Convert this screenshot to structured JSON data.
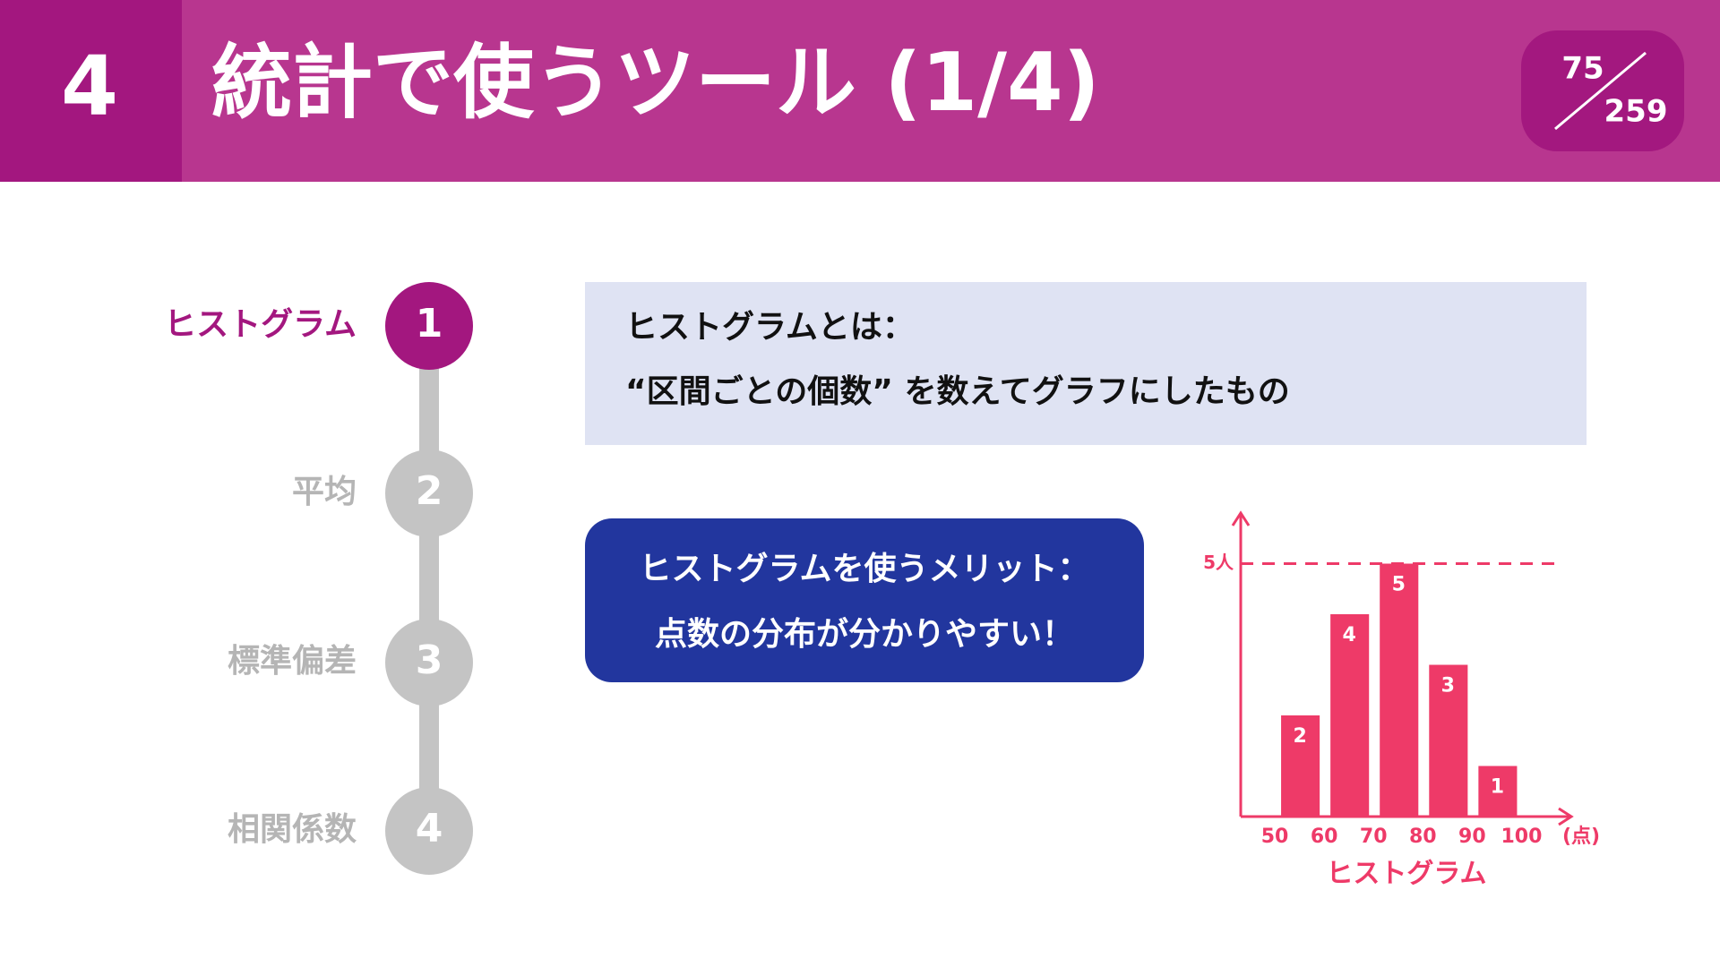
{
  "header": {
    "section": "4",
    "title": "統計で使うツール (1/4)",
    "page": "75",
    "total": "259"
  },
  "steps": [
    {
      "number": "1",
      "label": "ヒストグラム",
      "active": true
    },
    {
      "number": "2",
      "label": "平均",
      "active": false
    },
    {
      "number": "3",
      "label": "標準偏差",
      "active": false
    },
    {
      "number": "4",
      "label": "相関係数",
      "active": false
    }
  ],
  "definition": {
    "lines": [
      "ヒストグラムとは：",
      "“区間ごとの個数” を数えてグラフにしたもの"
    ]
  },
  "merit": {
    "lines": [
      "ヒストグラムを使うメリット：",
      "点数の分布が分かりやすい！"
    ]
  },
  "chart_data": {
    "type": "histogram",
    "title": "ヒストグラム",
    "color": "#ee3a68",
    "bins": [
      50,
      60,
      70,
      80,
      90,
      100
    ],
    "values": [
      2,
      4,
      5,
      3,
      1
    ],
    "xticks": [
      50,
      60,
      70,
      80,
      90,
      100
    ],
    "x_unit": "(点)",
    "xlim": [
      42,
      109
    ],
    "ylim": [
      0,
      6
    ],
    "reference_line": {
      "value": 5,
      "label": "5人"
    }
  }
}
